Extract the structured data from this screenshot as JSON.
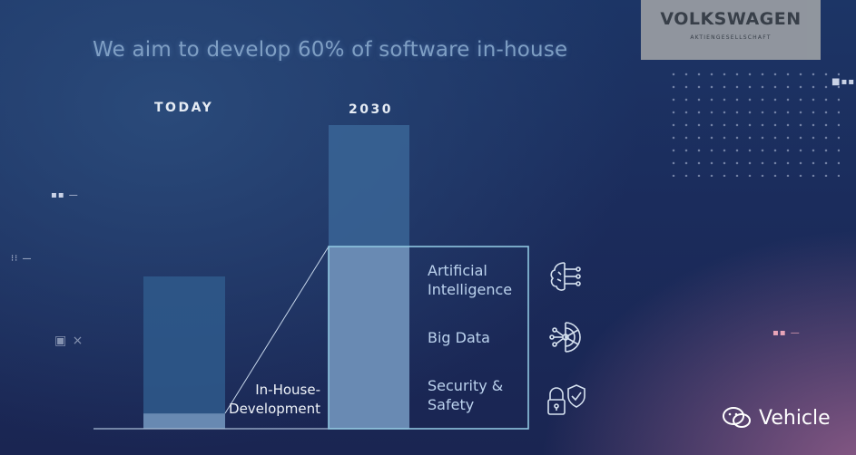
{
  "title": "We aim to develop 60% of software in-house",
  "logo": {
    "name": "VOLKSWAGEN",
    "subtitle": "AKTIENGESELLSCHAFT"
  },
  "chart_data": {
    "type": "bar",
    "categories": [
      "TODAY",
      "2030"
    ],
    "stacked": true,
    "series": [
      {
        "name": "In-House-Development",
        "values": [
          10,
          60
        ]
      },
      {
        "name": "",
        "values": [
          90,
          40
        ]
      }
    ],
    "ylim": [
      0,
      100
    ],
    "annotation": "In-House-Development",
    "breakdown_2030": [
      "Artificial Intelligence",
      "Big Data",
      "Security & Safety"
    ],
    "grid": false
  },
  "segments": [
    {
      "line1": "Artificial",
      "line2": "Intelligence",
      "icon": "ai-brain-icon"
    },
    {
      "line1": "Big Data",
      "line2": "",
      "icon": "big-data-icon"
    },
    {
      "line1": "Security &",
      "line2": "Safety",
      "icon": "security-lock-icon"
    }
  ],
  "watermark": "Vehicle",
  "colors": {
    "bar_today": "#2f5a8c",
    "bar_2030_top": "#3a6596",
    "inhouse_fill": "#6f8fb7",
    "outline": "#8fc6e0"
  }
}
